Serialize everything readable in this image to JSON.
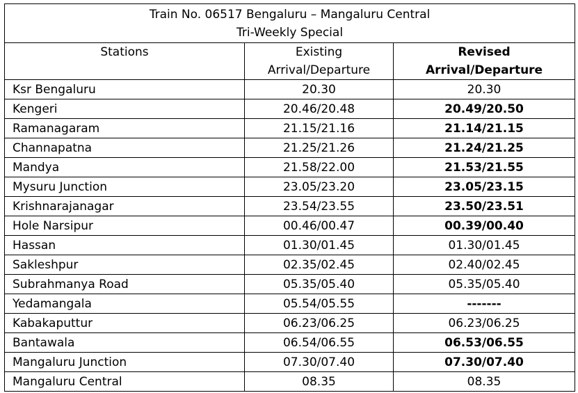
{
  "title": {
    "line1": "Train No. 06517 Bengaluru – Mangaluru Central",
    "line2": "Tri-Weekly Special"
  },
  "headers": {
    "stations": "Stations",
    "existing_line1": "Existing",
    "existing_line2": "Arrival/Departure",
    "revised_line1": "Revised",
    "revised_line2": "Arrival/Departure"
  },
  "rows": [
    {
      "station": "Ksr Bengaluru",
      "existing": "20.30",
      "revised": "20.30",
      "revised_bold": false
    },
    {
      "station": "Kengeri",
      "existing": "20.46/20.48",
      "revised": "20.49/20.50",
      "revised_bold": true
    },
    {
      "station": "Ramanagaram",
      "existing": "21.15/21.16",
      "revised": "21.14/21.15",
      "revised_bold": true
    },
    {
      "station": "Channapatna",
      "existing": "21.25/21.26",
      "revised": "21.24/21.25",
      "revised_bold": true
    },
    {
      "station": "Mandya",
      "existing": "21.58/22.00",
      "revised": "21.53/21.55",
      "revised_bold": true
    },
    {
      "station": "Mysuru Junction",
      "existing": "23.05/23.20",
      "revised": "23.05/23.15",
      "revised_bold": true
    },
    {
      "station": "Krishnarajanagar",
      "existing": "23.54/23.55",
      "revised": "23.50/23.51",
      "revised_bold": true
    },
    {
      "station": "Hole Narsipur",
      "existing": "00.46/00.47",
      "revised": "00.39/00.40",
      "revised_bold": true
    },
    {
      "station": "Hassan",
      "existing": "01.30/01.45",
      "revised": "01.30/01.45",
      "revised_bold": false
    },
    {
      "station": "Sakleshpur",
      "existing": "02.35/02.45",
      "revised": "02.40/02.45",
      "revised_bold": false
    },
    {
      "station": "Subrahmanya Road",
      "existing": "05.35/05.40",
      "revised": "05.35/05.40",
      "revised_bold": false
    },
    {
      "station": "Yedamangala",
      "existing": "05.54/05.55",
      "revised": "-------",
      "revised_bold": true
    },
    {
      "station": "Kabakaputtur",
      "existing": "06.23/06.25",
      "revised": "06.23/06.25",
      "revised_bold": false
    },
    {
      "station": "Bantawala",
      "existing": "06.54/06.55",
      "revised": "06.53/06.55",
      "revised_bold": true
    },
    {
      "station": "Mangaluru Junction",
      "existing": "07.30/07.40",
      "revised": "07.30/07.40",
      "revised_bold": true
    },
    {
      "station": "Mangaluru Central",
      "existing": "08.35",
      "revised": "08.35",
      "revised_bold": false
    }
  ]
}
